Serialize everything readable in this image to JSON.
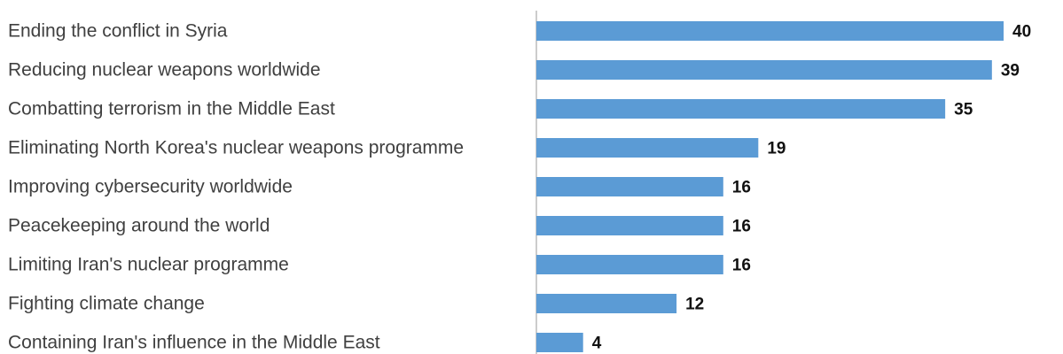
{
  "chart_data": {
    "type": "bar",
    "orientation": "horizontal",
    "categories": [
      "Ending the conflict in Syria",
      "Reducing nuclear weapons worldwide",
      "Combatting terrorism in the Middle East",
      "Eliminating North Korea's nuclear weapons programme",
      "Improving cybersecurity worldwide",
      "Peacekeeping around the world",
      "Limiting Iran's nuclear programme",
      "Fighting climate change",
      "Containing Iran's influence in the Middle East"
    ],
    "values": [
      40,
      39,
      35,
      19,
      16,
      16,
      16,
      12,
      4
    ],
    "title": "",
    "xlabel": "",
    "ylabel": "",
    "xlim": [
      0,
      40
    ],
    "grid": false,
    "legend": "none",
    "bar_color": "#5b9bd5",
    "axis_color": "#999999"
  }
}
